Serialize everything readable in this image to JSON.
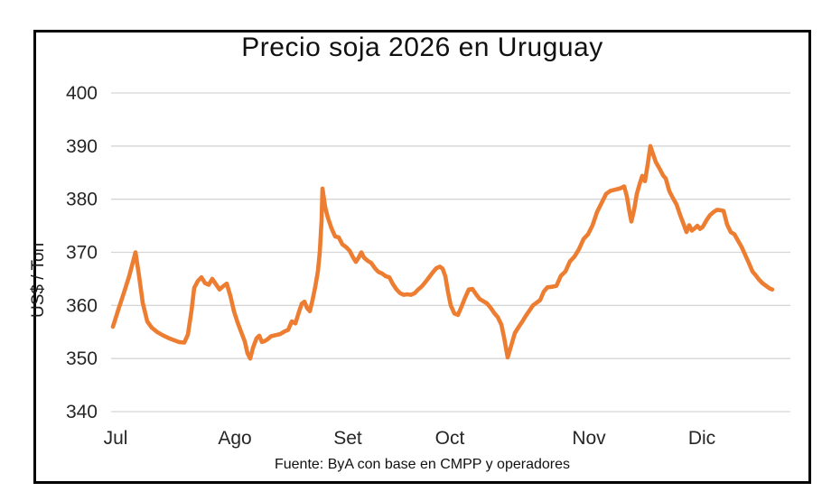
{
  "window": {
    "background": "#ffffff",
    "frame_border_color": "#000000"
  },
  "chart_data": {
    "type": "line",
    "title": "Precio soja 2026 en Uruguay",
    "ylabel": "US$ / Ton",
    "xlabel": "",
    "source_note": "Fuente: ByA con base en CMPP y operadores",
    "ylim": [
      340,
      400
    ],
    "yticks": [
      340,
      350,
      360,
      370,
      380,
      390,
      400
    ],
    "grid": "horizontal",
    "gridline_color": "#d6d6d6",
    "legend": "none",
    "line_color": "#ED7D31",
    "tick_label_color": "#262626",
    "xticks": [
      {
        "label": "Jul",
        "px": 5
      },
      {
        "label": "Ago",
        "px": 137
      },
      {
        "label": "Set",
        "px": 262
      },
      {
        "label": "Oct",
        "px": 375
      },
      {
        "label": "Nov",
        "px": 529
      },
      {
        "label": "Dic",
        "px": 654
      }
    ],
    "x_unit": "px_from_plot_left",
    "series": [
      {
        "name": "Precio soja US$/Ton",
        "points": [
          [
            2,
            356
          ],
          [
            8,
            359.2
          ],
          [
            14,
            362.3
          ],
          [
            20,
            365.5
          ],
          [
            27,
            370
          ],
          [
            31,
            365.5
          ],
          [
            35,
            360.5
          ],
          [
            40,
            357
          ],
          [
            45,
            355.8
          ],
          [
            51,
            355
          ],
          [
            57,
            354.4
          ],
          [
            63,
            353.9
          ],
          [
            69,
            353.5
          ],
          [
            75,
            353.1
          ],
          [
            81,
            353
          ],
          [
            85,
            354.5
          ],
          [
            89,
            359
          ],
          [
            92,
            363.3
          ],
          [
            96,
            364.6
          ],
          [
            100,
            365.3
          ],
          [
            104,
            364.2
          ],
          [
            108,
            363.9
          ],
          [
            112,
            365
          ],
          [
            116,
            364
          ],
          [
            120,
            363
          ],
          [
            124,
            363.6
          ],
          [
            128,
            364.1
          ],
          [
            132,
            361.8
          ],
          [
            136,
            358.9
          ],
          [
            140,
            356.8
          ],
          [
            144,
            355
          ],
          [
            148,
            353.2
          ],
          [
            151,
            351
          ],
          [
            154,
            350
          ],
          [
            157,
            352
          ],
          [
            161,
            353.8
          ],
          [
            164,
            354.3
          ],
          [
            167,
            353.1
          ],
          [
            170,
            353.3
          ],
          [
            173,
            353.6
          ],
          [
            177,
            354.2
          ],
          [
            182,
            354.4
          ],
          [
            187,
            354.6
          ],
          [
            192,
            355.1
          ],
          [
            196,
            355.4
          ],
          [
            200,
            357
          ],
          [
            204,
            356.6
          ],
          [
            208,
            358.8
          ],
          [
            211,
            360.3
          ],
          [
            214,
            360.7
          ],
          [
            217,
            359.5
          ],
          [
            220,
            358.9
          ],
          [
            223,
            361
          ],
          [
            226,
            363.5
          ],
          [
            229,
            366.5
          ],
          [
            231,
            370
          ],
          [
            233,
            376
          ],
          [
            234,
            382
          ],
          [
            237,
            378.5
          ],
          [
            240,
            376.5
          ],
          [
            244,
            374.5
          ],
          [
            248,
            373
          ],
          [
            252,
            372.8
          ],
          [
            256,
            371.5
          ],
          [
            260,
            371
          ],
          [
            264,
            370.3
          ],
          [
            268,
            369
          ],
          [
            271,
            368.2
          ],
          [
            274,
            369
          ],
          [
            277,
            370
          ],
          [
            280,
            369
          ],
          [
            284,
            368.4
          ],
          [
            288,
            368
          ],
          [
            292,
            367
          ],
          [
            296,
            366.3
          ],
          [
            300,
            366
          ],
          [
            304,
            365.5
          ],
          [
            308,
            365.3
          ],
          [
            312,
            364
          ],
          [
            316,
            363
          ],
          [
            320,
            362.3
          ],
          [
            324,
            362
          ],
          [
            328,
            362.1
          ],
          [
            332,
            362
          ],
          [
            336,
            362.3
          ],
          [
            340,
            363
          ],
          [
            344,
            363.6
          ],
          [
            348,
            364.4
          ],
          [
            352,
            365.3
          ],
          [
            356,
            366.2
          ],
          [
            360,
            367
          ],
          [
            364,
            367.3
          ],
          [
            367,
            366.9
          ],
          [
            370,
            365.5
          ],
          [
            373,
            362.5
          ],
          [
            376,
            360
          ],
          [
            380,
            358.5
          ],
          [
            384,
            358.2
          ],
          [
            388,
            359.8
          ],
          [
            392,
            361.5
          ],
          [
            396,
            363
          ],
          [
            400,
            363.1
          ],
          [
            404,
            362.1
          ],
          [
            408,
            361.2
          ],
          [
            412,
            360.8
          ],
          [
            416,
            360.4
          ],
          [
            420,
            359.6
          ],
          [
            424,
            358.6
          ],
          [
            428,
            357.8
          ],
          [
            432,
            356.4
          ],
          [
            435,
            354
          ],
          [
            439,
            350.2
          ],
          [
            443,
            352.5
          ],
          [
            447,
            354.8
          ],
          [
            451,
            355.9
          ],
          [
            455,
            356.9
          ],
          [
            459,
            358
          ],
          [
            463,
            359
          ],
          [
            467,
            360
          ],
          [
            471,
            360.5
          ],
          [
            475,
            361
          ],
          [
            479,
            362.6
          ],
          [
            483,
            363.4
          ],
          [
            488,
            363.5
          ],
          [
            493,
            363.7
          ],
          [
            498,
            365.6
          ],
          [
            503,
            366.4
          ],
          [
            508,
            368.3
          ],
          [
            513,
            369.2
          ],
          [
            518,
            370.6
          ],
          [
            523,
            372.5
          ],
          [
            528,
            373.4
          ],
          [
            533,
            375.1
          ],
          [
            538,
            377.6
          ],
          [
            543,
            379.3
          ],
          [
            548,
            381
          ],
          [
            553,
            381.6
          ],
          [
            558,
            381.8
          ],
          [
            563,
            382
          ],
          [
            568,
            382.4
          ],
          [
            571,
            380.5
          ],
          [
            574,
            377.5
          ],
          [
            576,
            375.8
          ],
          [
            579,
            378
          ],
          [
            582,
            381
          ],
          [
            585,
            382.8
          ],
          [
            588,
            384.4
          ],
          [
            591,
            383.4
          ],
          [
            594,
            386.5
          ],
          [
            597,
            390
          ],
          [
            600,
            388.5
          ],
          [
            603,
            387
          ],
          [
            607,
            385.8
          ],
          [
            611,
            384.5
          ],
          [
            614,
            383.9
          ],
          [
            618,
            381.5
          ],
          [
            622,
            380.2
          ],
          [
            626,
            379
          ],
          [
            630,
            377
          ],
          [
            634,
            375.2
          ],
          [
            637,
            373.8
          ],
          [
            640,
            375.1
          ],
          [
            643,
            374.1
          ],
          [
            646,
            374.5
          ],
          [
            649,
            375
          ],
          [
            652,
            374.4
          ],
          [
            655,
            374.8
          ],
          [
            659,
            376
          ],
          [
            663,
            377
          ],
          [
            667,
            377.6
          ],
          [
            671,
            378
          ],
          [
            675,
            377.9
          ],
          [
            678,
            377.8
          ],
          [
            682,
            375.2
          ],
          [
            686,
            373.8
          ],
          [
            690,
            373.4
          ],
          [
            694,
            372.2
          ],
          [
            698,
            371
          ],
          [
            702,
            369.5
          ],
          [
            706,
            368
          ],
          [
            710,
            366.4
          ],
          [
            714,
            365.6
          ],
          [
            717,
            364.9
          ],
          [
            721,
            364.2
          ],
          [
            725,
            363.7
          ],
          [
            729,
            363.2
          ],
          [
            732,
            363
          ]
        ]
      }
    ]
  }
}
